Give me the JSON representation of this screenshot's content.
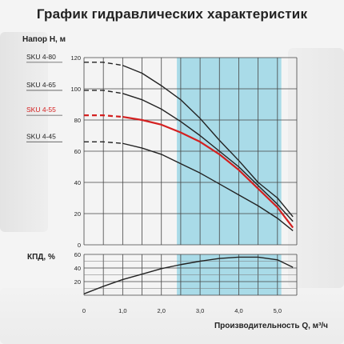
{
  "title": "График гидравлических характеристик",
  "chart_data": [
    {
      "type": "line",
      "ylabel": "Напор H, м",
      "xlim": [
        0,
        5.5
      ],
      "ylim": [
        0,
        120
      ],
      "y_ticks": [
        "0",
        "20",
        "40",
        "60",
        "80",
        "100",
        "120"
      ],
      "grid": true,
      "highlight_range": [
        2.4,
        5.1
      ],
      "highlight_color": "#a9dbe8",
      "series": [
        {
          "name": "SKU 4-80",
          "color": "#222222",
          "dashed_until": 1.0,
          "points": [
            [
              0.0,
              117
            ],
            [
              0.5,
              117
            ],
            [
              1.0,
              115
            ],
            [
              1.5,
              110
            ],
            [
              2.0,
              102
            ],
            [
              2.5,
              93
            ],
            [
              3.0,
              81
            ],
            [
              3.5,
              67
            ],
            [
              4.0,
              54
            ],
            [
              4.5,
              40
            ],
            [
              5.0,
              30
            ],
            [
              5.4,
              18
            ]
          ]
        },
        {
          "name": "SKU 4-65",
          "color": "#222222",
          "dashed_until": 1.0,
          "points": [
            [
              0.0,
              99
            ],
            [
              0.5,
              99
            ],
            [
              1.0,
              97
            ],
            [
              1.5,
              93
            ],
            [
              2.0,
              87
            ],
            [
              2.5,
              79
            ],
            [
              3.0,
              70
            ],
            [
              3.5,
              60
            ],
            [
              4.0,
              50
            ],
            [
              4.5,
              38
            ],
            [
              5.0,
              26
            ],
            [
              5.4,
              15
            ]
          ]
        },
        {
          "name": "SKU 4-55",
          "color": "#d42020",
          "dashed_until": 1.0,
          "points": [
            [
              0.0,
              83
            ],
            [
              0.5,
              83
            ],
            [
              1.0,
              82
            ],
            [
              1.5,
              80
            ],
            [
              2.0,
              77
            ],
            [
              2.5,
              72
            ],
            [
              3.0,
              66
            ],
            [
              3.5,
              58
            ],
            [
              4.0,
              48
            ],
            [
              4.5,
              36
            ],
            [
              5.0,
              24
            ],
            [
              5.4,
              11
            ]
          ]
        },
        {
          "name": "SKU 4-45",
          "color": "#222222",
          "dashed_until": 1.0,
          "points": [
            [
              0.0,
              66
            ],
            [
              0.5,
              66
            ],
            [
              1.0,
              65
            ],
            [
              1.5,
              62
            ],
            [
              2.0,
              58
            ],
            [
              2.5,
              52
            ],
            [
              3.0,
              46
            ],
            [
              3.5,
              39
            ],
            [
              4.0,
              32
            ],
            [
              4.5,
              25
            ],
            [
              5.0,
              17
            ],
            [
              5.4,
              9
            ]
          ]
        }
      ]
    },
    {
      "type": "line",
      "ylabel": "КПД, %",
      "xlabel": "Производительность Q, м³/ч",
      "xlim": [
        0,
        5.5
      ],
      "ylim": [
        0,
        60
      ],
      "x_ticks": [
        "0",
        "1,0",
        "2,0",
        "3,0",
        "4,0",
        "5,0"
      ],
      "y_ticks": [
        "0",
        "20",
        "40",
        "60"
      ],
      "grid": true,
      "highlight_range": [
        2.4,
        5.1
      ],
      "highlight_color": "#a9dbe8",
      "series": [
        {
          "color": "#222222",
          "points": [
            [
              0.0,
              2
            ],
            [
              0.5,
              13
            ],
            [
              1.0,
              23
            ],
            [
              1.5,
              31
            ],
            [
              2.0,
              39
            ],
            [
              2.5,
              45
            ],
            [
              3.0,
              50
            ],
            [
              3.5,
              54
            ],
            [
              4.0,
              56
            ],
            [
              4.5,
              56
            ],
            [
              5.0,
              52
            ],
            [
              5.4,
              41
            ]
          ]
        }
      ]
    }
  ]
}
